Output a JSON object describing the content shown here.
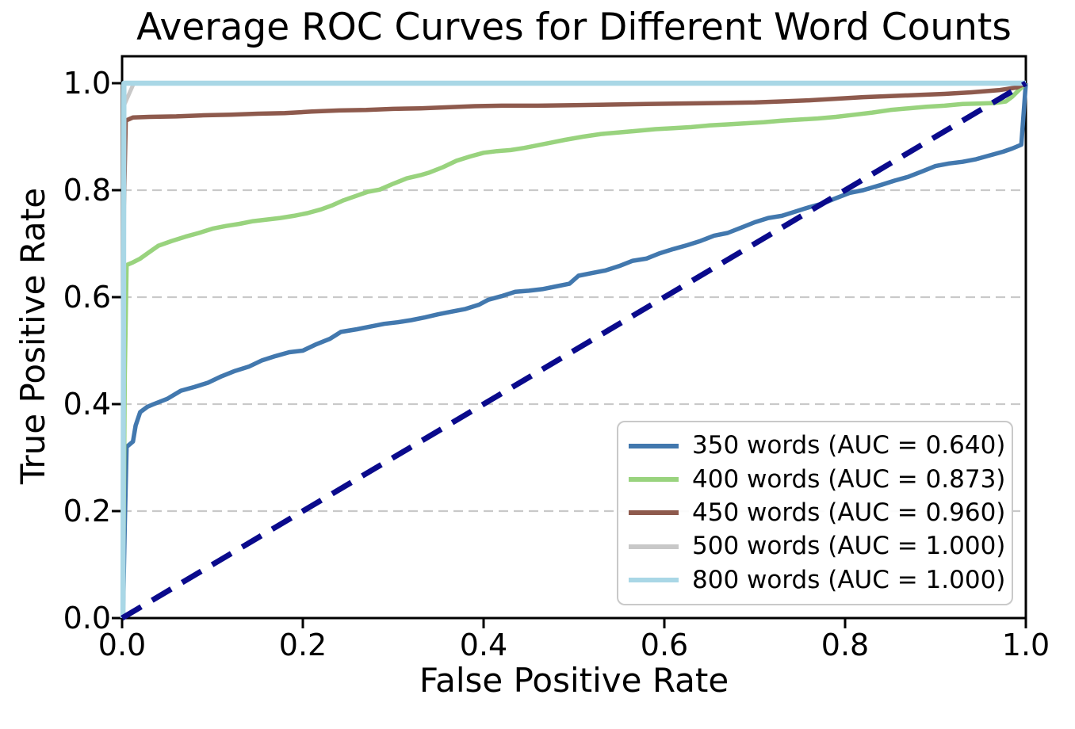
{
  "chart_data": {
    "type": "line",
    "title": "Average ROC Curves for Different Word Counts",
    "xlabel": "False Positive Rate",
    "ylabel": "True Positive Rate",
    "xlim": [
      0.0,
      1.0
    ],
    "ylim": [
      0.0,
      1.05
    ],
    "x_ticks": [
      0.0,
      0.2,
      0.4,
      0.6,
      0.8,
      1.0
    ],
    "x_tick_labels": [
      "0.0",
      "0.2",
      "0.4",
      "0.6",
      "0.8",
      "1.0"
    ],
    "y_ticks": [
      0.0,
      0.2,
      0.4,
      0.6,
      0.8,
      1.0
    ],
    "y_tick_labels": [
      "0.0",
      "0.2",
      "0.4",
      "0.6",
      "0.8",
      "1.0"
    ],
    "grid": {
      "horizontal": true,
      "vertical": false,
      "style": "dashed",
      "color": "#c9c9c9"
    },
    "legend": {
      "position": "lower right",
      "border_color": "#c9c9c9",
      "background": "#ffffff"
    },
    "axis_color": "#000000",
    "series": [
      {
        "id": "350-words",
        "label": "350 words (AUC = 0.640)",
        "words": 350,
        "auc": 0.64,
        "color": "#4278AE",
        "style": "solid",
        "in_legend": true,
        "points": [
          [
            0.001,
            0
          ],
          [
            0.003,
            0.175
          ],
          [
            0.005,
            0.32
          ],
          [
            0.012,
            0.33
          ],
          [
            0.015,
            0.36
          ],
          [
            0.02,
            0.385
          ],
          [
            0.028,
            0.395
          ],
          [
            0.035,
            0.4
          ],
          [
            0.05,
            0.41
          ],
          [
            0.065,
            0.425
          ],
          [
            0.08,
            0.432
          ],
          [
            0.095,
            0.44
          ],
          [
            0.11,
            0.452
          ],
          [
            0.125,
            0.462
          ],
          [
            0.14,
            0.47
          ],
          [
            0.155,
            0.482
          ],
          [
            0.17,
            0.49
          ],
          [
            0.185,
            0.497
          ],
          [
            0.2,
            0.5
          ],
          [
            0.215,
            0.512
          ],
          [
            0.23,
            0.522
          ],
          [
            0.242,
            0.535
          ],
          [
            0.26,
            0.54
          ],
          [
            0.275,
            0.545
          ],
          [
            0.29,
            0.55
          ],
          [
            0.305,
            0.553
          ],
          [
            0.32,
            0.557
          ],
          [
            0.335,
            0.562
          ],
          [
            0.35,
            0.568
          ],
          [
            0.365,
            0.573
          ],
          [
            0.38,
            0.578
          ],
          [
            0.395,
            0.586
          ],
          [
            0.405,
            0.595
          ],
          [
            0.42,
            0.602
          ],
          [
            0.435,
            0.61
          ],
          [
            0.45,
            0.612
          ],
          [
            0.465,
            0.615
          ],
          [
            0.48,
            0.62
          ],
          [
            0.495,
            0.625
          ],
          [
            0.505,
            0.64
          ],
          [
            0.52,
            0.645
          ],
          [
            0.535,
            0.65
          ],
          [
            0.55,
            0.658
          ],
          [
            0.565,
            0.668
          ],
          [
            0.58,
            0.672
          ],
          [
            0.595,
            0.682
          ],
          [
            0.61,
            0.69
          ],
          [
            0.625,
            0.697
          ],
          [
            0.64,
            0.705
          ],
          [
            0.655,
            0.715
          ],
          [
            0.67,
            0.72
          ],
          [
            0.685,
            0.73
          ],
          [
            0.7,
            0.74
          ],
          [
            0.715,
            0.748
          ],
          [
            0.73,
            0.752
          ],
          [
            0.745,
            0.76
          ],
          [
            0.76,
            0.768
          ],
          [
            0.775,
            0.775
          ],
          [
            0.79,
            0.785
          ],
          [
            0.805,
            0.795
          ],
          [
            0.82,
            0.8
          ],
          [
            0.84,
            0.81
          ],
          [
            0.855,
            0.818
          ],
          [
            0.87,
            0.825
          ],
          [
            0.885,
            0.835
          ],
          [
            0.9,
            0.845
          ],
          [
            0.915,
            0.85
          ],
          [
            0.93,
            0.853
          ],
          [
            0.945,
            0.858
          ],
          [
            0.96,
            0.865
          ],
          [
            0.975,
            0.872
          ],
          [
            0.985,
            0.878
          ],
          [
            0.995,
            0.885
          ],
          [
            1,
            1
          ]
        ]
      },
      {
        "id": "400-words",
        "label": "400 words (AUC = 0.873)",
        "words": 400,
        "auc": 0.873,
        "color": "#99D37E",
        "style": "solid",
        "in_legend": true,
        "points": [
          [
            0.001,
            0
          ],
          [
            0.003,
            0.455
          ],
          [
            0.005,
            0.66
          ],
          [
            0.012,
            0.665
          ],
          [
            0.02,
            0.672
          ],
          [
            0.03,
            0.684
          ],
          [
            0.04,
            0.696
          ],
          [
            0.055,
            0.705
          ],
          [
            0.07,
            0.713
          ],
          [
            0.085,
            0.72
          ],
          [
            0.1,
            0.728
          ],
          [
            0.115,
            0.733
          ],
          [
            0.13,
            0.737
          ],
          [
            0.145,
            0.742
          ],
          [
            0.16,
            0.745
          ],
          [
            0.175,
            0.748
          ],
          [
            0.19,
            0.752
          ],
          [
            0.205,
            0.757
          ],
          [
            0.22,
            0.764
          ],
          [
            0.233,
            0.772
          ],
          [
            0.245,
            0.781
          ],
          [
            0.26,
            0.79
          ],
          [
            0.272,
            0.797
          ],
          [
            0.285,
            0.801
          ],
          [
            0.3,
            0.812
          ],
          [
            0.315,
            0.822
          ],
          [
            0.33,
            0.828
          ],
          [
            0.34,
            0.833
          ],
          [
            0.355,
            0.843
          ],
          [
            0.37,
            0.855
          ],
          [
            0.385,
            0.863
          ],
          [
            0.4,
            0.87
          ],
          [
            0.415,
            0.873
          ],
          [
            0.43,
            0.875
          ],
          [
            0.445,
            0.879
          ],
          [
            0.46,
            0.884
          ],
          [
            0.475,
            0.889
          ],
          [
            0.49,
            0.894
          ],
          [
            0.51,
            0.9
          ],
          [
            0.53,
            0.905
          ],
          [
            0.55,
            0.908
          ],
          [
            0.57,
            0.911
          ],
          [
            0.59,
            0.914
          ],
          [
            0.61,
            0.916
          ],
          [
            0.63,
            0.918
          ],
          [
            0.65,
            0.921
          ],
          [
            0.67,
            0.923
          ],
          [
            0.69,
            0.925
          ],
          [
            0.71,
            0.927
          ],
          [
            0.73,
            0.93
          ],
          [
            0.75,
            0.932
          ],
          [
            0.77,
            0.934
          ],
          [
            0.79,
            0.937
          ],
          [
            0.81,
            0.941
          ],
          [
            0.83,
            0.945
          ],
          [
            0.85,
            0.95
          ],
          [
            0.87,
            0.953
          ],
          [
            0.89,
            0.956
          ],
          [
            0.91,
            0.958
          ],
          [
            0.93,
            0.961
          ],
          [
            0.95,
            0.962
          ],
          [
            0.965,
            0.963
          ],
          [
            0.978,
            0.966
          ],
          [
            0.985,
            0.975
          ],
          [
            1,
            1
          ]
        ]
      },
      {
        "id": "450-words",
        "label": "450 words (AUC = 0.960)",
        "words": 450,
        "auc": 0.96,
        "color": "#8E5A4D",
        "style": "solid",
        "in_legend": true,
        "points": [
          [
            0.001,
            0
          ],
          [
            0.002,
            0.77
          ],
          [
            0.004,
            0.93
          ],
          [
            0.012,
            0.936
          ],
          [
            0.03,
            0.937
          ],
          [
            0.06,
            0.938
          ],
          [
            0.09,
            0.94
          ],
          [
            0.12,
            0.941
          ],
          [
            0.15,
            0.943
          ],
          [
            0.18,
            0.944
          ],
          [
            0.21,
            0.947
          ],
          [
            0.24,
            0.949
          ],
          [
            0.27,
            0.95
          ],
          [
            0.3,
            0.952
          ],
          [
            0.33,
            0.953
          ],
          [
            0.36,
            0.955
          ],
          [
            0.39,
            0.957
          ],
          [
            0.42,
            0.958
          ],
          [
            0.46,
            0.958
          ],
          [
            0.5,
            0.959
          ],
          [
            0.54,
            0.96
          ],
          [
            0.58,
            0.961
          ],
          [
            0.62,
            0.962
          ],
          [
            0.66,
            0.963
          ],
          [
            0.7,
            0.964
          ],
          [
            0.73,
            0.966
          ],
          [
            0.76,
            0.968
          ],
          [
            0.79,
            0.971
          ],
          [
            0.82,
            0.974
          ],
          [
            0.85,
            0.976
          ],
          [
            0.88,
            0.978
          ],
          [
            0.91,
            0.98
          ],
          [
            0.94,
            0.983
          ],
          [
            0.97,
            0.987
          ],
          [
            0.99,
            0.992
          ],
          [
            1,
            1
          ]
        ]
      },
      {
        "id": "500-words",
        "label": "500 words (AUC = 1.000)",
        "words": 500,
        "auc": 1.0,
        "color": "#C8C8C8",
        "style": "solid",
        "in_legend": true,
        "points": [
          [
            0.001,
            0
          ],
          [
            0.002,
            0.958
          ],
          [
            0.013,
            1
          ],
          [
            1,
            1
          ]
        ]
      },
      {
        "id": "800-words",
        "label": "800 words (AUC = 1.000)",
        "words": 800,
        "auc": 1.0,
        "color": "#A9D7E6",
        "style": "solid",
        "in_legend": true,
        "points": [
          [
            0.001,
            0
          ],
          [
            0.002,
            1
          ],
          [
            1,
            1
          ]
        ]
      },
      {
        "id": "chance-diagonal",
        "label": "",
        "style": "dashed",
        "color": "#0A0A8C",
        "in_legend": false,
        "points": [
          [
            0,
            0
          ],
          [
            1,
            1
          ]
        ]
      }
    ]
  }
}
